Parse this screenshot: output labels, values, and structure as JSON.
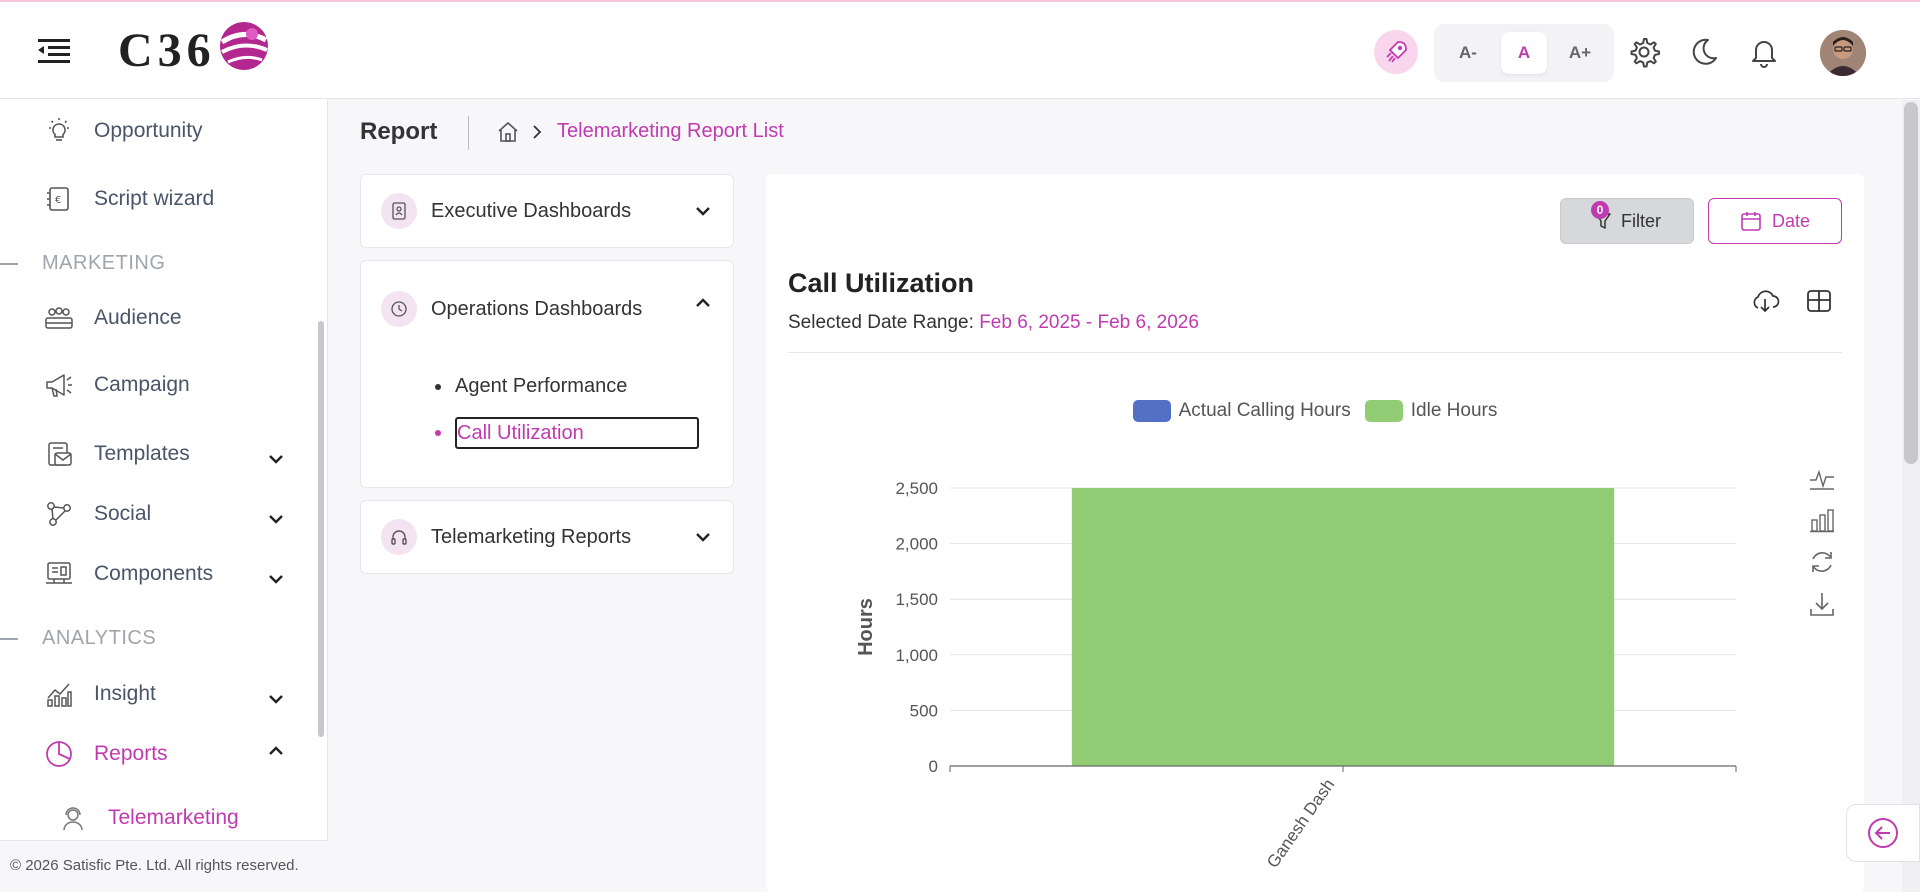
{
  "header": {
    "logo_text": "C36",
    "font_sizes": [
      "A-",
      "A",
      "A+"
    ],
    "active_font_size": "A"
  },
  "sidebar": {
    "items_top": [
      {
        "label": "Opportunity"
      },
      {
        "label": "Script wizard"
      }
    ],
    "section_marketing": "MARKETING",
    "items_marketing": [
      {
        "label": "Audience"
      },
      {
        "label": "Campaign"
      },
      {
        "label": "Templates"
      },
      {
        "label": "Social"
      },
      {
        "label": "Components"
      }
    ],
    "section_analytics": "ANALYTICS",
    "items_analytics": [
      {
        "label": "Insight"
      },
      {
        "label": "Reports"
      },
      {
        "label": "Telemarketing"
      }
    ],
    "footer": "© 2026 Satisfic Pte. Ltd. All rights reserved."
  },
  "breadcrumb": {
    "page_title": "Report",
    "current": "Telemarketing Report List"
  },
  "accordion": {
    "executive": "Executive Dashboards",
    "operations": "Operations Dashboards",
    "operations_items": [
      "Agent Performance",
      "Call Utilization"
    ],
    "telemarketing": "Telemarketing Reports"
  },
  "toolbar": {
    "filter_label": "Filter",
    "filter_count": "0",
    "date_label": "Date"
  },
  "report": {
    "title": "Call Utilization",
    "range_label": "Selected Date Range:",
    "range_value": "Feb 6, 2025 - Feb 6, 2026"
  },
  "colors": {
    "accent": "#c13bb0",
    "actual_calling": "#5470c6",
    "idle": "#91cc75"
  },
  "chart_data": {
    "type": "bar",
    "categories": [
      "Ganesh Dash"
    ],
    "series": [
      {
        "name": "Actual Calling Hours",
        "values": [
          0
        ]
      },
      {
        "name": "Idle Hours",
        "values": [
          2500
        ]
      }
    ],
    "ylabel": "Hours",
    "ylim": [
      0,
      2500
    ],
    "yticks": [
      0,
      500,
      1000,
      1500,
      2000,
      2500
    ],
    "stacked": true,
    "legend_position": "top"
  }
}
